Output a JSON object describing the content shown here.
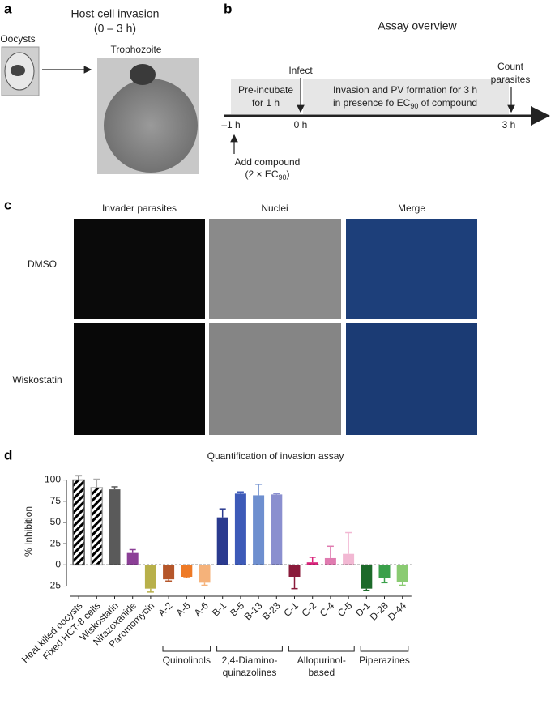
{
  "panel_a": {
    "letter": "a",
    "title": "Host cell invasion",
    "subtitle": "(0 – 3 h)",
    "left_label": "Oocysts",
    "right_label": "Trophozoite"
  },
  "panel_b": {
    "letter": "b",
    "title": "Assay overview",
    "infect": "Infect",
    "count": [
      "Count",
      "parasites"
    ],
    "preincubate": [
      "Pre-incubate",
      "for 1 h"
    ],
    "invasion": [
      "Invasion and PV formation for 3 h",
      "in presence fo EC",
      "90",
      " of compound"
    ],
    "times": [
      "–1 h",
      "0 h",
      "3 h"
    ],
    "add": [
      "Add compound",
      "(2 × EC",
      "90",
      ")"
    ]
  },
  "panel_c": {
    "letter": "c",
    "columns": [
      "Invader parasites",
      "Nuclei",
      "Merge"
    ],
    "rows": [
      "DMSO",
      "Wiskostatin"
    ]
  },
  "chart_data": {
    "type": "bar",
    "letter": "d",
    "title": "Quantification of invasion assay",
    "y_label": "% Inhibition",
    "categories": [
      "Heat killed oocysts",
      "Fixed HCT-8 cells",
      "Wiskostatin",
      "Nitazoxanide",
      "Paromomycin",
      "A-2",
      "A-5",
      "A-6",
      "B-1",
      "B-5",
      "B-13",
      "B-23",
      "C-1",
      "C-2",
      "C-4",
      "C-5",
      "D-1",
      "D-28",
      "D-44"
    ],
    "values": [
      100,
      91,
      89,
      14,
      -28,
      -17,
      -14,
      -21,
      56,
      84,
      82,
      83,
      -14,
      3,
      8,
      13,
      -28,
      -15,
      -20
    ],
    "errors": [
      5,
      10,
      3,
      4,
      4,
      2,
      1,
      3,
      10,
      2,
      13,
      1,
      14,
      6,
      14,
      25,
      2,
      6,
      4
    ],
    "colors": [
      "#555555",
      "#aaaaaa",
      "#5a5a5a",
      "#8b3f96",
      "#b8b04a",
      "#b5562a",
      "#ee7a26",
      "#f5b27a",
      "#2a3a8f",
      "#3d5ab8",
      "#6e8fcf",
      "#8a8fcf",
      "#8a1a3a",
      "#d9237a",
      "#e07bb0",
      "#f2b8d3",
      "#1c6a2a",
      "#3aa04a",
      "#8acb72"
    ],
    "hatched": [
      true,
      true,
      false,
      false,
      false,
      false,
      false,
      false,
      false,
      false,
      false,
      false,
      false,
      false,
      false,
      false,
      false,
      false,
      false
    ],
    "groups": [
      {
        "label": [
          "Quinolinols"
        ],
        "start": 5,
        "end": 7
      },
      {
        "label": [
          "2,4-Diamino-",
          "quinazolines"
        ],
        "start": 8,
        "end": 11
      },
      {
        "label": [
          "Allopurinol-",
          "based"
        ],
        "start": 12,
        "end": 15
      },
      {
        "label": [
          "Piperazines"
        ],
        "start": 16,
        "end": 18
      }
    ],
    "ylim": [
      -35,
      112
    ],
    "yticks": [
      100,
      75,
      50,
      25,
      0,
      -25
    ]
  }
}
